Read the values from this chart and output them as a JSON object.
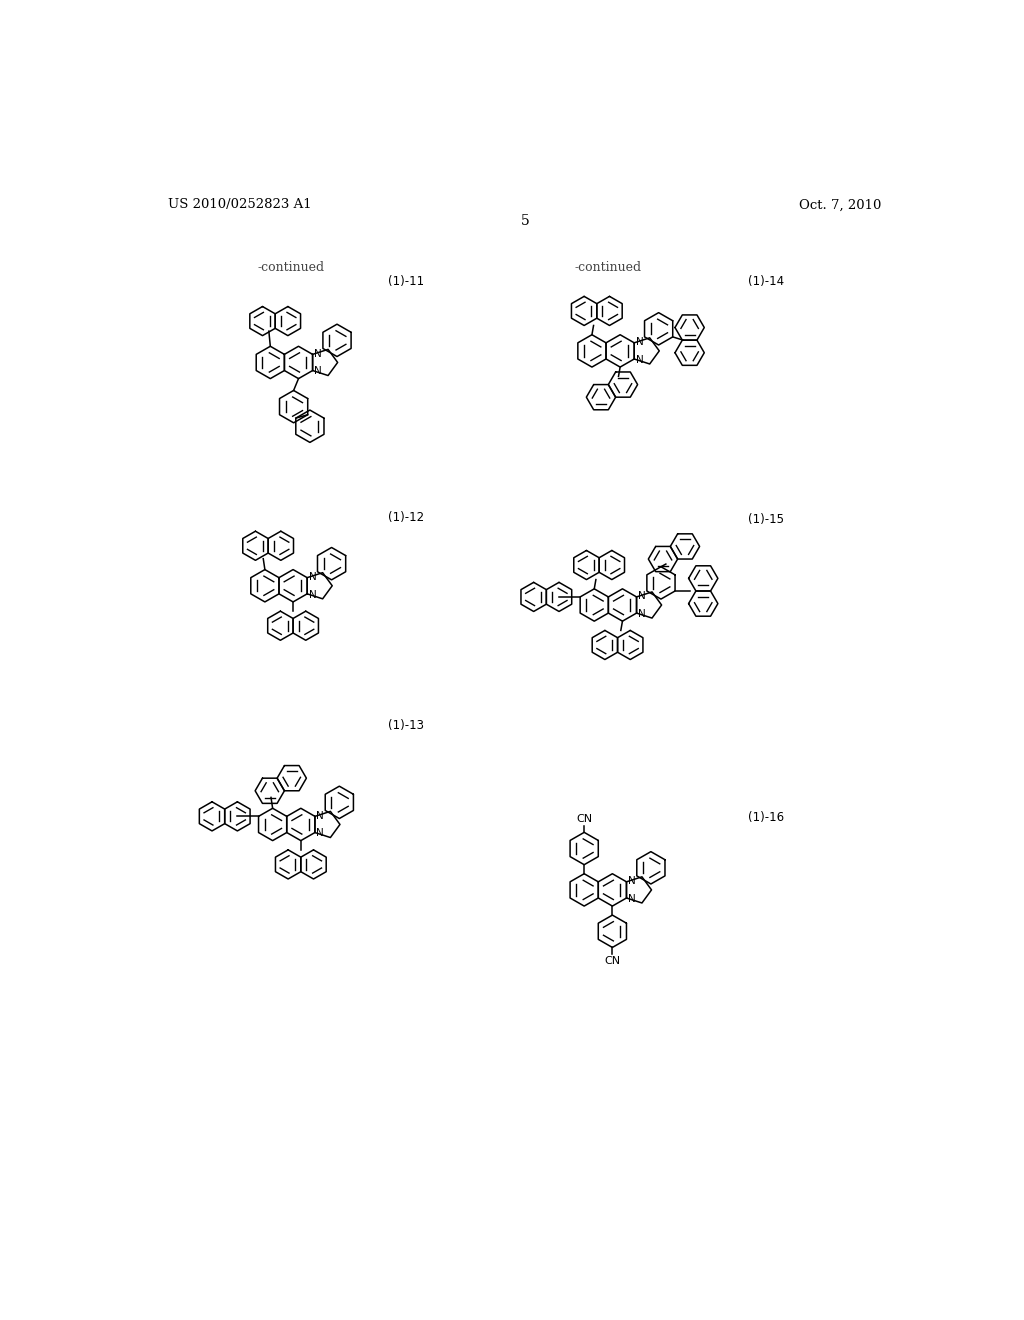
{
  "background_color": "#ffffff",
  "page_number": "5",
  "header_left": "US 2010/0252823 A1",
  "header_right": "Oct. 7, 2010",
  "continued_left": "-continued",
  "continued_right": "-continued",
  "label_11": "(1)-11",
  "label_12": "(1)-12",
  "label_13": "(1)-13",
  "label_14": "(1)-14",
  "label_15": "(1)-15",
  "label_16": "(1)-16",
  "lw": 1.1,
  "r": 21,
  "font_size_header": 9.5,
  "font_size_label": 8.5,
  "font_size_continued": 9.0,
  "font_size_N": 7.5,
  "font_size_CN": 8.0
}
